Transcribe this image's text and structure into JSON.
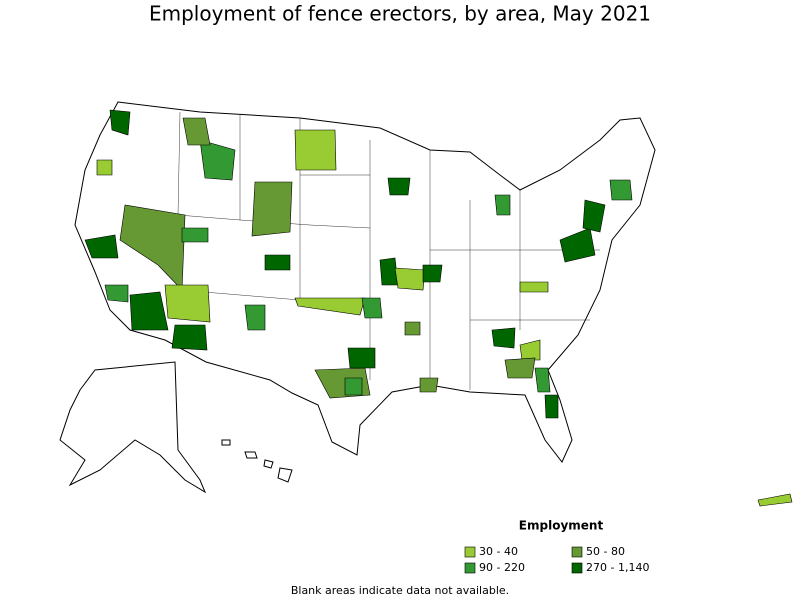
{
  "title": "Employment of fence erectors, by area, May 2021",
  "legend": {
    "title": "Employment",
    "items": [
      {
        "label": "30 - 40",
        "color": "#99cc33"
      },
      {
        "label": "50 - 80",
        "color": "#669933"
      },
      {
        "label": "90 - 220",
        "color": "#339933"
      },
      {
        "label": "270 - 1,140",
        "color": "#006600"
      }
    ]
  },
  "note": "Blank areas indicate data not available."
}
